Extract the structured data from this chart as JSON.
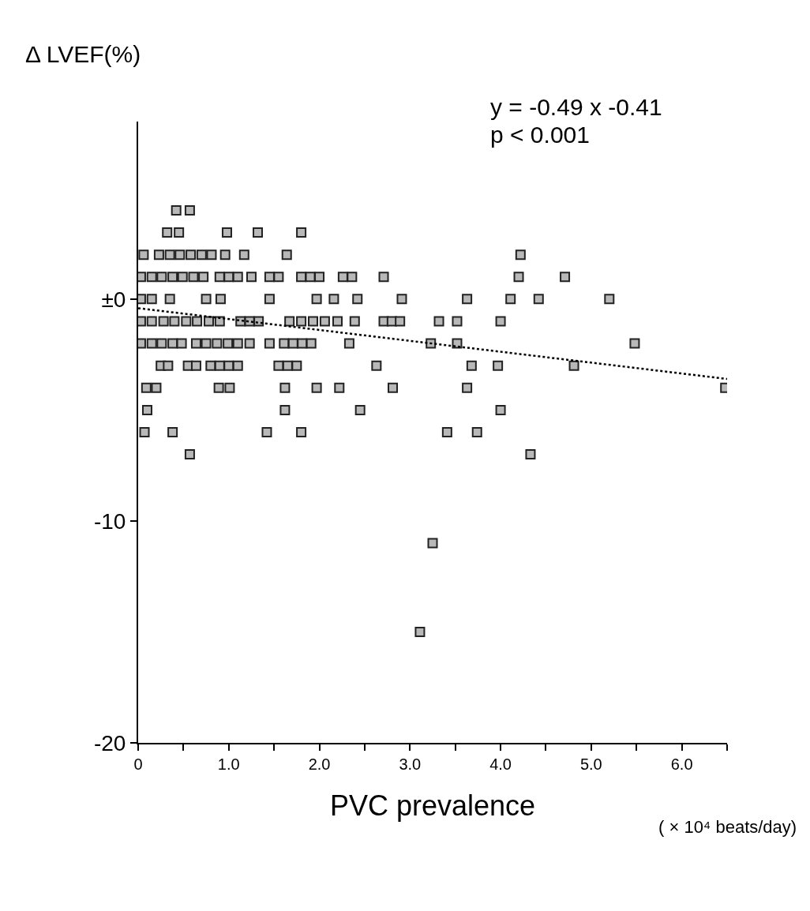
{
  "chart_data": {
    "type": "scatter",
    "xlabel": "PVC prevalence",
    "ylabel": "Δ LVEF(%)",
    "annotations": [
      "y = -0.49 x -0.41",
      "p < 0.001",
      "( × 10⁴ beats/day)"
    ],
    "xlim": [
      0,
      6.5
    ],
    "ylim": [
      -20,
      8
    ],
    "xticks": [
      0,
      {
        "value": 0.5,
        "label": null
      },
      {
        "value": 1,
        "label": "1.0"
      },
      {
        "value": 1.5,
        "label": null
      },
      {
        "value": 2,
        "label": "2.0"
      },
      {
        "value": 2.5,
        "label": null
      },
      {
        "value": 3,
        "label": "3.0"
      },
      {
        "value": 3.5,
        "label": null
      },
      {
        "value": 4,
        "label": "4.0"
      },
      {
        "value": 4.5,
        "label": null
      },
      {
        "value": 5,
        "label": "5.0"
      },
      {
        "value": 5.5,
        "label": null
      },
      {
        "value": 6,
        "label": "6.0"
      },
      {
        "value": 6.5,
        "label": null
      }
    ],
    "yticks": [
      -20,
      -10,
      {
        "value": 0,
        "label": "±0"
      }
    ],
    "marker": "square",
    "series": [
      {
        "color": "#222222",
        "x": [
          0.42,
          0.57,
          0.32,
          0.45,
          0.98,
          1.32,
          1.8,
          0.06,
          0.23,
          0.35,
          0.46,
          0.58,
          0.7,
          0.81,
          0.96,
          1.17,
          1.64,
          4.22,
          0.03,
          0.15,
          0.26,
          0.38,
          0.49,
          0.61,
          0.72,
          0.9,
          1.0,
          1.1,
          1.25,
          1.45,
          1.55,
          1.8,
          1.9,
          2.0,
          2.26,
          2.36,
          2.71,
          4.2,
          4.71,
          0.03,
          0.15,
          0.35,
          0.75,
          0.91,
          1.45,
          1.97,
          2.16,
          2.42,
          2.91,
          3.63,
          4.11,
          4.42,
          5.2,
          0.03,
          0.15,
          0.28,
          0.4,
          0.53,
          0.65,
          0.78,
          0.9,
          1.13,
          1.23,
          1.33,
          1.67,
          1.8,
          1.93,
          2.06,
          2.2,
          2.39,
          2.71,
          2.8,
          2.89,
          3.32,
          3.52,
          4.0,
          0.03,
          0.15,
          0.26,
          0.38,
          0.48,
          0.64,
          0.75,
          0.87,
          0.99,
          1.1,
          1.23,
          1.45,
          1.61,
          1.71,
          1.81,
          1.91,
          2.33,
          3.23,
          3.52,
          5.48,
          0.25,
          0.33,
          0.55,
          0.64,
          0.8,
          0.9,
          1.0,
          1.1,
          1.55,
          1.65,
          1.75,
          2.63,
          3.68,
          3.97,
          4.81,
          0.09,
          0.2,
          0.89,
          1.01,
          1.62,
          1.97,
          2.22,
          2.81,
          3.63,
          6.48,
          0.1,
          1.62,
          2.45,
          4.0,
          0.07,
          0.38,
          1.42,
          1.8,
          3.41,
          3.74,
          0.57,
          4.33,
          3.25,
          3.11
        ],
        "values": [
          4,
          4,
          3,
          3,
          3,
          3,
          3,
          2,
          2,
          2,
          2,
          2,
          2,
          2,
          2,
          2,
          2,
          2,
          1,
          1,
          1,
          1,
          1,
          1,
          1,
          1,
          1,
          1,
          1,
          1,
          1,
          1,
          1,
          1,
          1,
          1,
          1,
          1,
          1,
          0,
          0,
          0,
          0,
          0,
          0,
          0,
          0,
          0,
          0,
          0,
          0,
          0,
          0,
          -1,
          -1,
          -1,
          -1,
          -1,
          -1,
          -1,
          -1,
          -1,
          -1,
          -1,
          -1,
          -1,
          -1,
          -1,
          -1,
          -1,
          -1,
          -1,
          -1,
          -1,
          -1,
          -1,
          -2,
          -2,
          -2,
          -2,
          -2,
          -2,
          -2,
          -2,
          -2,
          -2,
          -2,
          -2,
          -2,
          -2,
          -2,
          -2,
          -2,
          -2,
          -2,
          -2,
          -3,
          -3,
          -3,
          -3,
          -3,
          -3,
          -3,
          -3,
          -3,
          -3,
          -3,
          -3,
          -3,
          -3,
          -3,
          -4,
          -4,
          -4,
          -4,
          -4,
          -4,
          -4,
          -4,
          -4,
          -4,
          -5,
          -5,
          -5,
          -5,
          -6,
          -6,
          -6,
          -6,
          -6,
          -6,
          -7,
          -7,
          -11,
          -15
        ]
      },
      {
        "type": "line",
        "color": "#000000",
        "line_style": "dotted",
        "marker": "none",
        "x": [
          0,
          6.5
        ],
        "values": [
          -0.41,
          -3.6
        ]
      }
    ]
  }
}
